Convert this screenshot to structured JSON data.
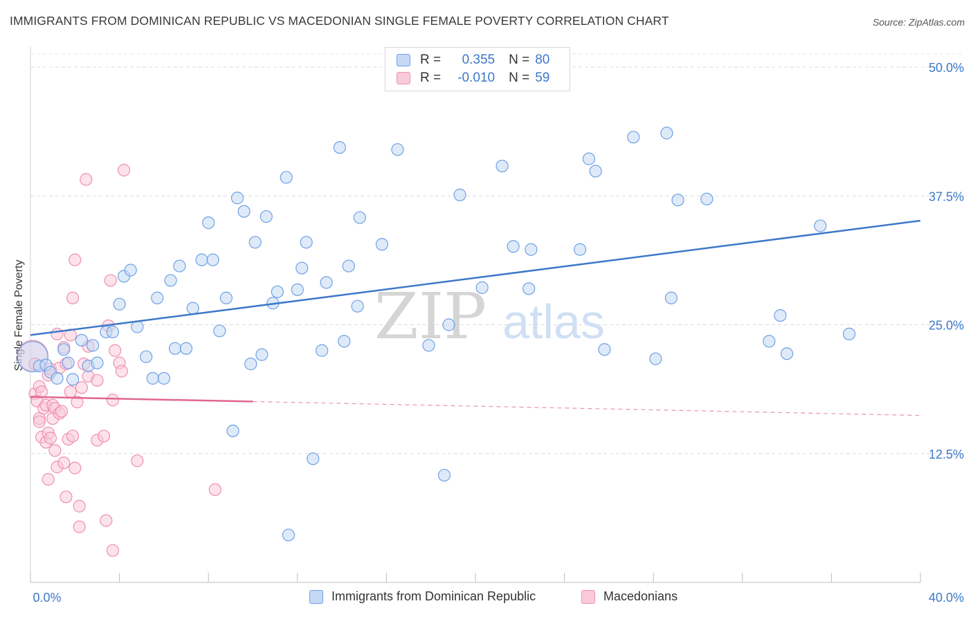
{
  "header": {
    "title": "IMMIGRANTS FROM DOMINICAN REPUBLIC VS MACEDONIAN SINGLE FEMALE POVERTY CORRELATION CHART",
    "source": "Source: ZipAtlas.com"
  },
  "stats": [
    {
      "r_label": "R =",
      "r_value": "0.355",
      "n_label": "N =",
      "n_value": "80",
      "color": "#6fa0e6"
    },
    {
      "r_label": "R =",
      "r_value": "-0.010",
      "n_label": "N =",
      "n_value": "59",
      "color": "#ef8fb0"
    }
  ],
  "watermark": {
    "zip": "ZIP",
    "atlas": "atlas"
  },
  "legend": [
    {
      "label": "Immigrants from Dominican Republic",
      "fill": "#c5d8f4",
      "stroke": "#6fa0e6"
    },
    {
      "label": "Macedonians",
      "fill": "#f9cbd9",
      "stroke": "#ef8fb0"
    }
  ],
  "chart_data": {
    "type": "scatter",
    "title": "IMMIGRANTS FROM DOMINICAN REPUBLIC VS MACEDONIAN SINGLE FEMALE POVERTY CORRELATION CHART",
    "xlabel": "",
    "ylabel": "Single Female Poverty",
    "xlim": [
      0,
      40
    ],
    "ylim": [
      0,
      50
    ],
    "x_tick_labels": [
      "0.0%",
      "40.0%"
    ],
    "y_ticks": [
      12.5,
      25.0,
      37.5,
      50.0
    ],
    "y_tick_labels": [
      "12.5%",
      "25.0%",
      "37.5%",
      "50.0%"
    ],
    "grid": "horizontal dashed",
    "colors": {
      "blue": "#3d78c9",
      "blue_fill": "#c5d8f4",
      "blue_stroke": "#6fa0e6",
      "pink": "#e0668f",
      "pink_fill": "#f9cbd9",
      "pink_stroke": "#ef8fb0"
    },
    "series": [
      {
        "name": "Immigrants from Dominican Republic",
        "color": "#6fa0e6",
        "trend": {
          "x": [
            0,
            40
          ],
          "y": [
            24.0,
            35.1
          ]
        },
        "points": [
          [
            0.1,
            21.9
          ],
          [
            0.4,
            21.0
          ],
          [
            0.7,
            21.1
          ],
          [
            0.9,
            20.4
          ],
          [
            1.2,
            19.8
          ],
          [
            1.5,
            22.6
          ],
          [
            1.7,
            21.3
          ],
          [
            1.9,
            19.7
          ],
          [
            2.3,
            23.5
          ],
          [
            2.6,
            21.0
          ],
          [
            2.8,
            23.0
          ],
          [
            3.0,
            21.3
          ],
          [
            3.4,
            24.3
          ],
          [
            3.7,
            24.3
          ],
          [
            4.0,
            27.0
          ],
          [
            4.2,
            29.7
          ],
          [
            4.5,
            30.3
          ],
          [
            4.8,
            24.8
          ],
          [
            5.2,
            21.9
          ],
          [
            5.5,
            19.8
          ],
          [
            5.7,
            27.6
          ],
          [
            6.0,
            19.8
          ],
          [
            6.3,
            29.3
          ],
          [
            6.5,
            22.7
          ],
          [
            6.7,
            30.7
          ],
          [
            7.0,
            22.7
          ],
          [
            7.3,
            26.6
          ],
          [
            7.7,
            31.3
          ],
          [
            8.0,
            34.9
          ],
          [
            8.2,
            31.3
          ],
          [
            8.5,
            24.4
          ],
          [
            8.8,
            27.6
          ],
          [
            9.3,
            37.3
          ],
          [
            9.6,
            36.0
          ],
          [
            9.9,
            21.2
          ],
          [
            10.1,
            33.0
          ],
          [
            10.4,
            22.1
          ],
          [
            10.6,
            35.5
          ],
          [
            10.9,
            27.1
          ],
          [
            11.1,
            28.2
          ],
          [
            11.5,
            39.3
          ],
          [
            11.6,
            4.6
          ],
          [
            12.0,
            28.4
          ],
          [
            12.2,
            30.5
          ],
          [
            12.4,
            33.0
          ],
          [
            12.7,
            12.0
          ],
          [
            13.1,
            22.5
          ],
          [
            13.3,
            29.1
          ],
          [
            13.9,
            42.2
          ],
          [
            14.1,
            23.4
          ],
          [
            14.3,
            30.7
          ],
          [
            14.7,
            26.8
          ],
          [
            14.8,
            35.4
          ],
          [
            15.8,
            32.8
          ],
          [
            16.5,
            42.0
          ],
          [
            17.9,
            23.0
          ],
          [
            18.6,
            10.4
          ],
          [
            18.8,
            25.0
          ],
          [
            19.3,
            37.6
          ],
          [
            20.3,
            28.6
          ],
          [
            21.2,
            40.4
          ],
          [
            21.7,
            32.6
          ],
          [
            22.5,
            32.3
          ],
          [
            22.4,
            28.5
          ],
          [
            24.7,
            32.3
          ],
          [
            25.1,
            41.1
          ],
          [
            25.4,
            39.9
          ],
          [
            25.8,
            22.6
          ],
          [
            27.1,
            43.2
          ],
          [
            28.1,
            21.7
          ],
          [
            28.6,
            43.6
          ],
          [
            28.8,
            27.6
          ],
          [
            29.1,
            37.1
          ],
          [
            30.4,
            37.2
          ],
          [
            33.2,
            23.4
          ],
          [
            33.7,
            25.9
          ],
          [
            34.0,
            22.2
          ],
          [
            35.5,
            34.6
          ],
          [
            36.8,
            24.1
          ],
          [
            9.1,
            14.7
          ]
        ]
      },
      {
        "name": "Macedonians",
        "color": "#ef8fb0",
        "trend": {
          "x": [
            0,
            40
          ],
          "y": [
            18.0,
            16.2
          ],
          "solid_to_x": 10.0
        },
        "points": [
          [
            0.1,
            22.0
          ],
          [
            0.2,
            21.2
          ],
          [
            0.2,
            18.3
          ],
          [
            0.3,
            17.6
          ],
          [
            0.4,
            19.0
          ],
          [
            0.4,
            15.9
          ],
          [
            0.5,
            18.5
          ],
          [
            0.5,
            14.1
          ],
          [
            0.6,
            16.9
          ],
          [
            0.7,
            17.2
          ],
          [
            0.7,
            13.6
          ],
          [
            0.8,
            20.1
          ],
          [
            0.8,
            10.0
          ],
          [
            0.8,
            14.5
          ],
          [
            0.9,
            20.7
          ],
          [
            0.9,
            14.0
          ],
          [
            1.0,
            17.2
          ],
          [
            1.0,
            15.9
          ],
          [
            1.1,
            16.9
          ],
          [
            1.1,
            12.8
          ],
          [
            1.2,
            11.2
          ],
          [
            1.2,
            24.1
          ],
          [
            1.3,
            20.8
          ],
          [
            1.3,
            16.4
          ],
          [
            1.4,
            16.6
          ],
          [
            1.5,
            11.6
          ],
          [
            1.5,
            22.8
          ],
          [
            1.6,
            8.3
          ],
          [
            1.6,
            21.2
          ],
          [
            1.7,
            13.9
          ],
          [
            1.8,
            24.0
          ],
          [
            1.8,
            18.5
          ],
          [
            1.9,
            14.2
          ],
          [
            1.9,
            27.6
          ],
          [
            2.0,
            11.1
          ],
          [
            2.0,
            31.3
          ],
          [
            2.1,
            17.5
          ],
          [
            2.2,
            7.4
          ],
          [
            2.2,
            5.4
          ],
          [
            2.3,
            18.9
          ],
          [
            2.4,
            21.2
          ],
          [
            2.5,
            39.1
          ],
          [
            2.6,
            22.9
          ],
          [
            2.6,
            20.0
          ],
          [
            3.0,
            13.8
          ],
          [
            3.0,
            19.6
          ],
          [
            3.3,
            14.2
          ],
          [
            3.4,
            6.0
          ],
          [
            3.5,
            24.9
          ],
          [
            3.6,
            29.3
          ],
          [
            3.7,
            17.7
          ],
          [
            3.7,
            3.1
          ],
          [
            3.8,
            22.5
          ],
          [
            4.0,
            21.3
          ],
          [
            4.1,
            20.5
          ],
          [
            4.2,
            40.0
          ],
          [
            4.8,
            11.8
          ],
          [
            8.3,
            9.0
          ],
          [
            0.4,
            15.6
          ]
        ]
      }
    ]
  }
}
